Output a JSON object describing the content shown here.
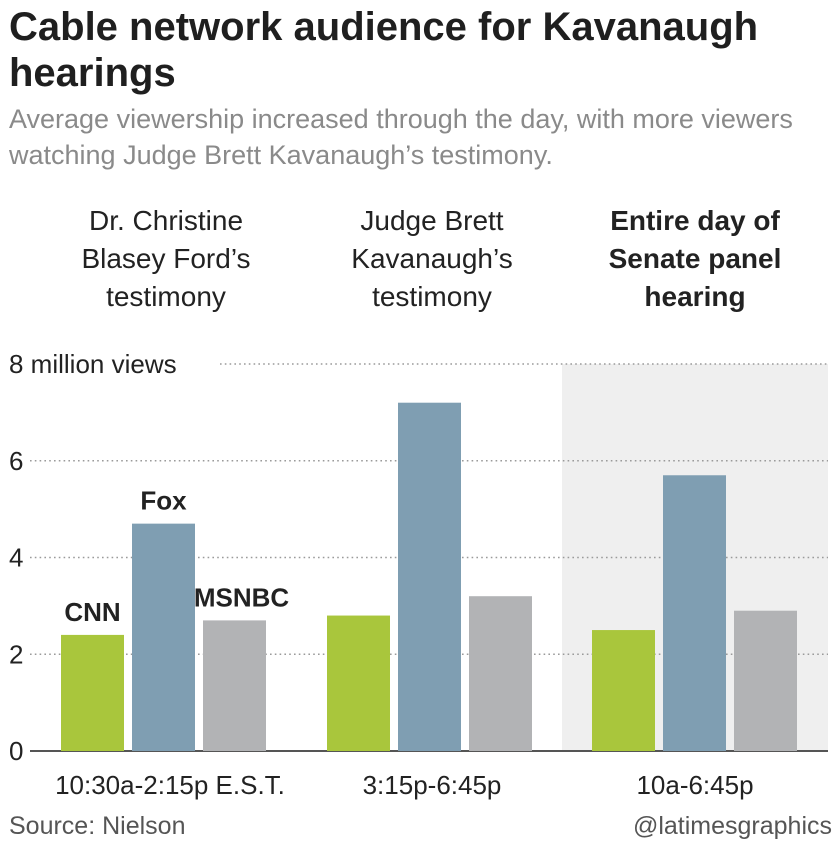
{
  "title": "Cable network audience for Kavanaugh hearings",
  "subtitle": "Average viewership increased through the day, with more viewers watching Judge Brett Kavanaugh’s testimony.",
  "source": "Source: Nielson",
  "credit": "@latimesgraphics",
  "chart_data": {
    "type": "bar",
    "groups": [
      {
        "heading": [
          "Dr. Christine",
          "Blasey Ford’s",
          "testimony"
        ],
        "heading_bold": false,
        "highlighted": false,
        "category": "10:30a-2:15p E.S.T."
      },
      {
        "heading": [
          "Judge Brett",
          "Kavanaugh’s",
          "testimony"
        ],
        "heading_bold": false,
        "highlighted": false,
        "category": "3:15p-6:45p"
      },
      {
        "heading": [
          "Entire day of",
          "Senate panel",
          "hearing"
        ],
        "heading_bold": true,
        "highlighted": true,
        "category": "10a-6:45p"
      }
    ],
    "categories": [
      "10:30a-2:15p E.S.T.",
      "3:15p-6:45p",
      "10a-6:45p"
    ],
    "series": [
      {
        "name": "CNN",
        "values": [
          2.4,
          2.8,
          2.5
        ],
        "color": "#a9c63c"
      },
      {
        "name": "Fox",
        "values": [
          4.7,
          7.2,
          5.7
        ],
        "color": "#7f9eb2"
      },
      {
        "name": "MSNBC",
        "values": [
          2.7,
          3.2,
          2.9
        ],
        "color": "#b2b3b5"
      }
    ],
    "ylim": [
      0,
      8
    ],
    "yticks": [
      0,
      2,
      4,
      6,
      8
    ],
    "ytick_labels": [
      "0",
      "2",
      "4",
      "6",
      "8 million views"
    ],
    "grid": "dotted",
    "highlight_color": "#efefef"
  }
}
